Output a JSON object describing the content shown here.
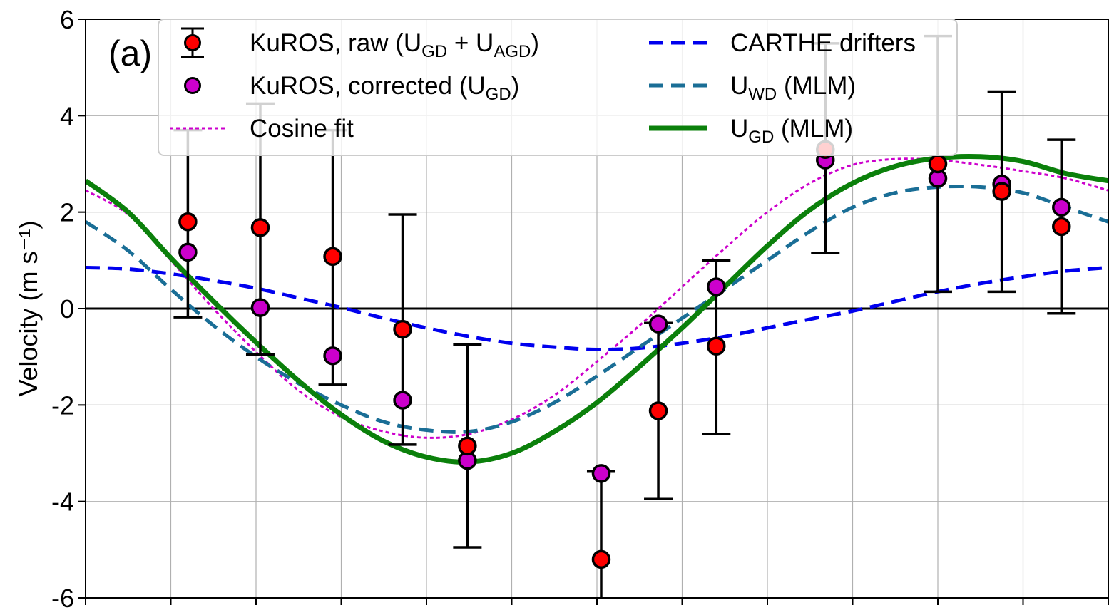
{
  "chart_data": {
    "type": "line",
    "panel_label": "(a)",
    "ylabel": "Velocity (m s⁻¹)",
    "xlabel": "",
    "ylim": [
      -6,
      6
    ],
    "yticks": [
      {
        "value": 6,
        "label": "6"
      },
      {
        "value": 4,
        "label": "4"
      },
      {
        "value": 2,
        "label": "2"
      },
      {
        "value": 0,
        "label": "0"
      },
      {
        "value": -2,
        "label": "-2"
      },
      {
        "value": -4,
        "label": "-4"
      },
      {
        "value": -6,
        "label": "-6"
      }
    ],
    "grid": true,
    "zero_line": true,
    "legend_position": "top",
    "colors": {
      "raw": "#ff0000",
      "corrected": "#cc00cc",
      "cosine_fit": "#cc00cc",
      "carthe": "#0000ee",
      "uwd": "#1a6e96",
      "ugd": "#0b800b",
      "errorbar": "#000000"
    },
    "legend": {
      "raw": {
        "main": "KuROS, raw (U",
        "sub1": "GD",
        "mid": " + U",
        "sub2": "AGD",
        "end": ")"
      },
      "corrected": {
        "main": "KuROS, corrected (U",
        "sub1": "GD",
        "end": ")"
      },
      "cosine": {
        "main": "Cosine fit"
      },
      "carthe": {
        "main": "CARTHE drifters"
      },
      "uwd": {
        "main": "U",
        "sub1": "WD",
        "end": " (MLM)"
      },
      "ugd": {
        "main": "U",
        "sub1": "GD",
        "end": " (MLM)"
      }
    },
    "series": [
      {
        "name": "KuROS, raw (UGD + UAGD)",
        "kind": "errorbar",
        "x": [
          1.2,
          2.05,
          2.9,
          3.72,
          4.48,
          6.05,
          6.72,
          7.4,
          8.68,
          10.0,
          10.75,
          11.45
        ],
        "y": [
          1.8,
          1.68,
          1.08,
          -0.43,
          -2.85,
          -5.2,
          -2.12,
          -0.78,
          3.3,
          3.0,
          2.43,
          1.7
        ],
        "yerr_low": [
          -0.18,
          -0.95,
          -1.58,
          -2.82,
          -4.95,
          -6.0,
          -3.95,
          -2.6,
          1.15,
          0.35,
          0.35,
          -0.1
        ],
        "yerr_high": [
          3.7,
          4.25,
          3.7,
          1.95,
          -0.75,
          -3.38,
          -0.3,
          1.0,
          5.5,
          5.65,
          4.5,
          3.5
        ]
      },
      {
        "name": "KuROS, corrected (UGD)",
        "kind": "scatter",
        "x": [
          1.2,
          2.05,
          2.9,
          3.72,
          4.48,
          6.05,
          6.72,
          7.4,
          8.68,
          10.0,
          10.75,
          11.45
        ],
        "y": [
          1.17,
          0.02,
          -0.98,
          -1.9,
          -3.15,
          -3.42,
          -0.32,
          0.45,
          3.08,
          2.7,
          2.58,
          2.1
        ]
      },
      {
        "name": "Cosine fit",
        "kind": "line",
        "x": [
          0.0,
          0.5,
          1.0,
          1.5,
          2.0,
          2.5,
          3.0,
          3.5,
          4.0,
          4.5,
          5.0,
          5.5,
          6.0,
          6.5,
          7.0,
          7.5,
          8.0,
          8.5,
          9.0,
          9.5,
          10.0,
          10.5,
          11.0,
          11.5,
          12.0
        ],
        "y": [
          2.45,
          1.95,
          1.0,
          0.0,
          -0.9,
          -1.7,
          -2.25,
          -2.55,
          -2.68,
          -2.6,
          -2.3,
          -1.8,
          -1.1,
          -0.35,
          0.45,
          1.25,
          2.0,
          2.6,
          2.98,
          3.1,
          3.08,
          2.98,
          2.85,
          2.7,
          2.45
        ]
      },
      {
        "name": "CARTHE drifters",
        "kind": "line",
        "x": [
          0.0,
          0.5,
          1.0,
          1.5,
          2.0,
          2.5,
          3.0,
          3.5,
          4.0,
          4.5,
          5.0,
          5.5,
          6.0,
          6.5,
          7.0,
          7.5,
          8.0,
          8.5,
          9.0,
          9.5,
          10.0,
          10.5,
          11.0,
          11.5,
          12.0
        ],
        "y": [
          0.85,
          0.82,
          0.72,
          0.58,
          0.42,
          0.22,
          0.02,
          -0.2,
          -0.4,
          -0.58,
          -0.72,
          -0.8,
          -0.85,
          -0.82,
          -0.72,
          -0.58,
          -0.4,
          -0.22,
          -0.05,
          0.15,
          0.35,
          0.52,
          0.66,
          0.78,
          0.85
        ]
      },
      {
        "name": "UWD (MLM)",
        "kind": "line",
        "x": [
          0.0,
          0.5,
          1.0,
          1.5,
          2.0,
          2.5,
          3.0,
          3.5,
          4.0,
          4.5,
          5.0,
          5.5,
          6.0,
          6.5,
          7.0,
          7.5,
          8.0,
          8.5,
          9.0,
          9.5,
          10.0,
          10.5,
          11.0,
          11.5,
          12.0
        ],
        "y": [
          1.8,
          1.2,
          0.4,
          -0.35,
          -1.0,
          -1.55,
          -2.0,
          -2.35,
          -2.52,
          -2.55,
          -2.35,
          -1.95,
          -1.4,
          -0.8,
          -0.2,
          0.4,
          1.0,
          1.6,
          2.1,
          2.4,
          2.52,
          2.52,
          2.4,
          2.1,
          1.8
        ]
      },
      {
        "name": "UGD (MLM)",
        "kind": "line",
        "x": [
          0.0,
          0.5,
          1.0,
          1.5,
          2.0,
          2.5,
          3.0,
          3.5,
          4.0,
          4.5,
          5.0,
          5.5,
          6.0,
          6.5,
          7.0,
          7.5,
          8.0,
          8.5,
          9.0,
          9.5,
          10.0,
          10.5,
          11.0,
          11.5,
          12.0
        ],
        "y": [
          2.65,
          2.0,
          1.05,
          0.15,
          -0.7,
          -1.5,
          -2.2,
          -2.75,
          -3.08,
          -3.18,
          -3.0,
          -2.55,
          -1.95,
          -1.2,
          -0.4,
          0.45,
          1.3,
          2.05,
          2.6,
          2.95,
          3.12,
          3.15,
          3.05,
          2.8,
          2.65
        ]
      }
    ]
  }
}
